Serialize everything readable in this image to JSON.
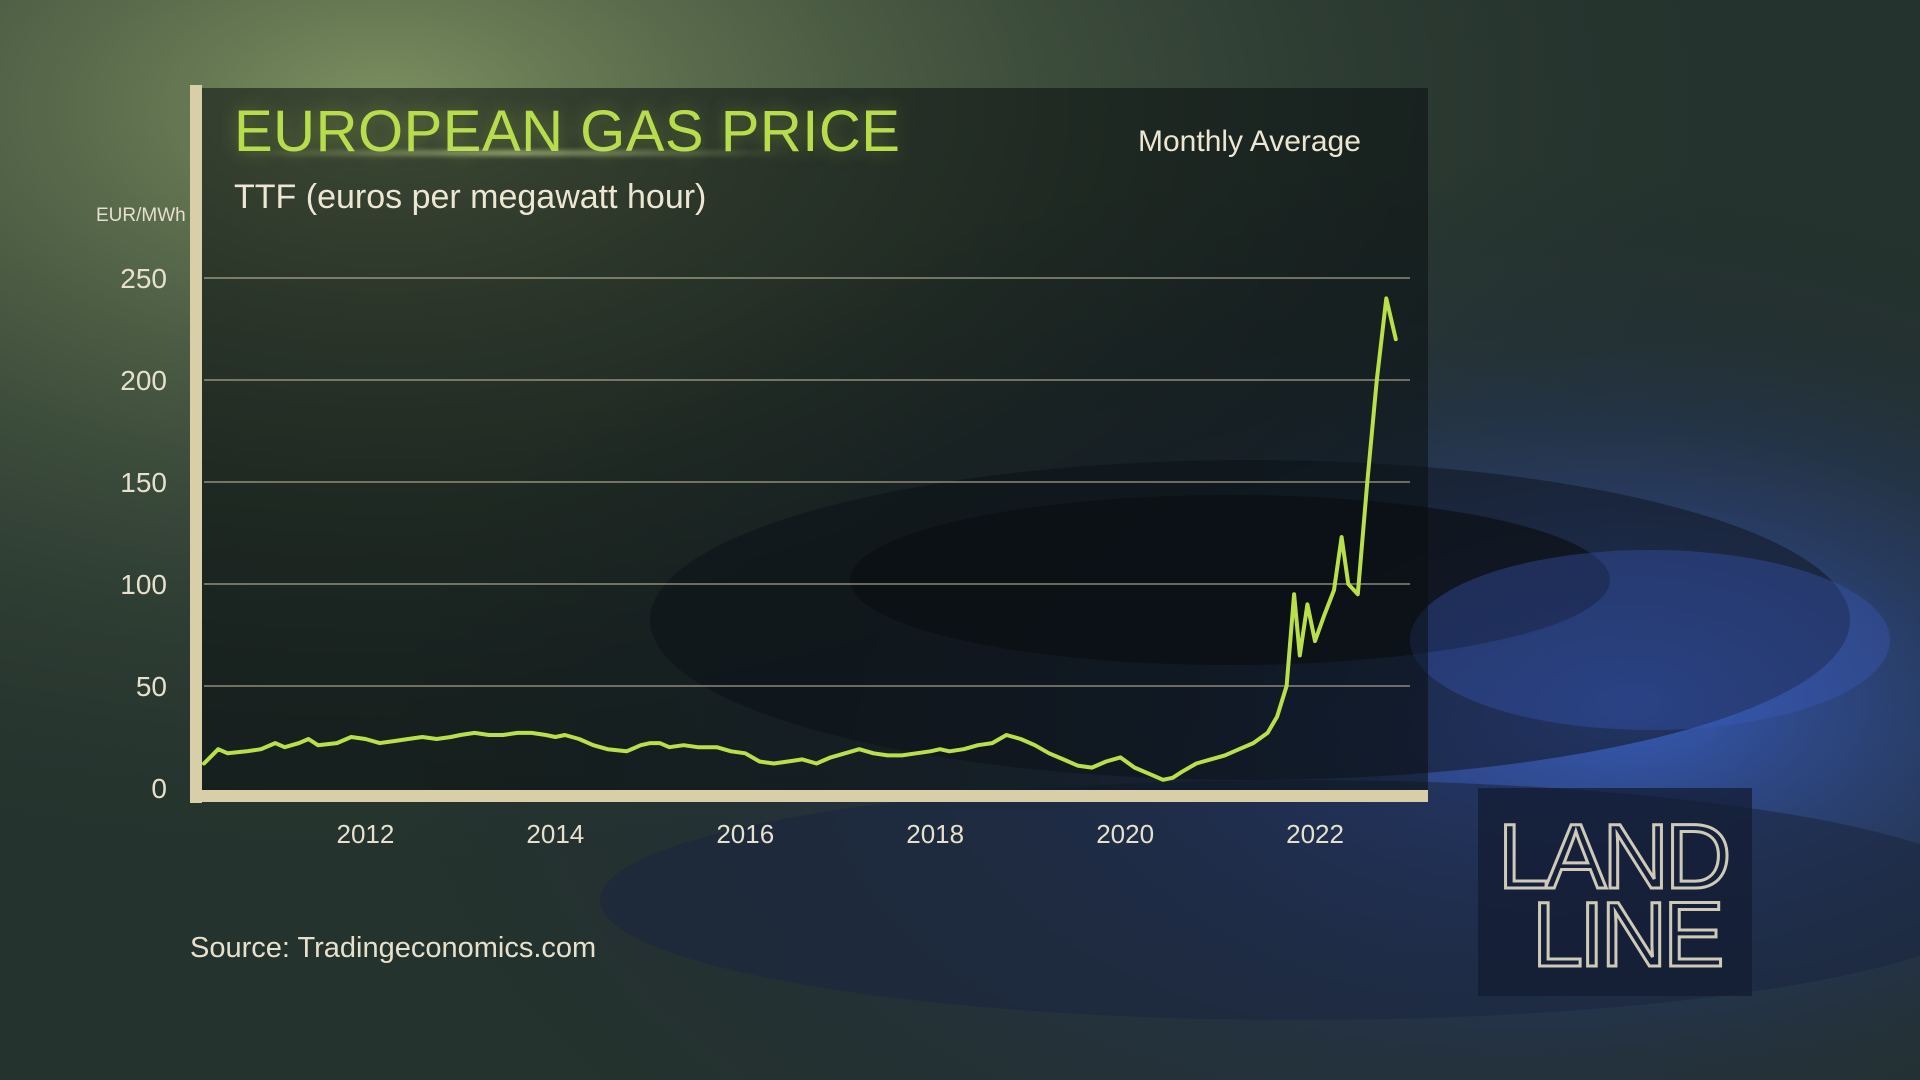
{
  "header": {
    "title": "EUROPEAN GAS PRICE",
    "subtitle": "TTF (euros per megawatt hour)",
    "note": "Monthly Average"
  },
  "footer": {
    "source": "Source: Tradingeconomics.com"
  },
  "logo": {
    "line1": "LAND",
    "line2": "LINE"
  },
  "colors": {
    "title": "#b7dc4c",
    "line": "#b9e04a",
    "axis_rule": "#d8cfa8",
    "text": "#e6e0cc"
  },
  "chart_data": {
    "type": "line",
    "title": "EUROPEAN GAS PRICE",
    "subtitle": "TTF (euros per megawatt hour)",
    "ylabel": "EUR/MWh",
    "xlabel": "",
    "ylim": [
      0,
      250
    ],
    "yticks": [
      0,
      50,
      100,
      150,
      200,
      250
    ],
    "xlim": [
      2010.3,
      2023.0
    ],
    "xticks": [
      2012,
      2014,
      2016,
      2018,
      2020,
      2022
    ],
    "grid": true,
    "series": [
      {
        "values": [
          [
            2010.3,
            12
          ],
          [
            2010.45,
            19
          ],
          [
            2010.55,
            17
          ],
          [
            2010.75,
            18
          ],
          [
            2010.9,
            19
          ],
          [
            2011.05,
            22
          ],
          [
            2011.15,
            20
          ],
          [
            2011.3,
            22
          ],
          [
            2011.4,
            24
          ],
          [
            2011.5,
            21
          ],
          [
            2011.7,
            22
          ],
          [
            2011.85,
            25
          ],
          [
            2012.0,
            24
          ],
          [
            2012.15,
            22
          ],
          [
            2012.3,
            23
          ],
          [
            2012.45,
            24
          ],
          [
            2012.6,
            25
          ],
          [
            2012.75,
            24
          ],
          [
            2012.9,
            25
          ],
          [
            2013.0,
            26
          ],
          [
            2013.15,
            27
          ],
          [
            2013.3,
            26
          ],
          [
            2013.45,
            26
          ],
          [
            2013.6,
            27
          ],
          [
            2013.75,
            27
          ],
          [
            2013.9,
            26
          ],
          [
            2014.0,
            25
          ],
          [
            2014.1,
            26
          ],
          [
            2014.25,
            24
          ],
          [
            2014.4,
            21
          ],
          [
            2014.55,
            19
          ],
          [
            2014.75,
            18
          ],
          [
            2014.9,
            21
          ],
          [
            2015.0,
            22
          ],
          [
            2015.1,
            22
          ],
          [
            2015.2,
            20
          ],
          [
            2015.35,
            21
          ],
          [
            2015.5,
            20
          ],
          [
            2015.7,
            20
          ],
          [
            2015.85,
            18
          ],
          [
            2016.0,
            17
          ],
          [
            2016.15,
            13
          ],
          [
            2016.3,
            12
          ],
          [
            2016.45,
            13
          ],
          [
            2016.6,
            14
          ],
          [
            2016.75,
            12
          ],
          [
            2016.9,
            15
          ],
          [
            2017.05,
            17
          ],
          [
            2017.2,
            19
          ],
          [
            2017.35,
            17
          ],
          [
            2017.5,
            16
          ],
          [
            2017.65,
            16
          ],
          [
            2017.8,
            17
          ],
          [
            2017.95,
            18
          ],
          [
            2018.05,
            19
          ],
          [
            2018.15,
            18
          ],
          [
            2018.3,
            19
          ],
          [
            2018.45,
            21
          ],
          [
            2018.6,
            22
          ],
          [
            2018.75,
            26
          ],
          [
            2018.9,
            24
          ],
          [
            2019.05,
            21
          ],
          [
            2019.2,
            17
          ],
          [
            2019.35,
            14
          ],
          [
            2019.5,
            11
          ],
          [
            2019.65,
            10
          ],
          [
            2019.8,
            13
          ],
          [
            2019.95,
            15
          ],
          [
            2020.1,
            10
          ],
          [
            2020.25,
            7
          ],
          [
            2020.4,
            4
          ],
          [
            2020.5,
            5
          ],
          [
            2020.6,
            8
          ],
          [
            2020.75,
            12
          ],
          [
            2020.9,
            14
          ],
          [
            2021.05,
            16
          ],
          [
            2021.2,
            19
          ],
          [
            2021.35,
            22
          ],
          [
            2021.5,
            27
          ],
          [
            2021.6,
            35
          ],
          [
            2021.7,
            50
          ],
          [
            2021.78,
            95
          ],
          [
            2021.84,
            65
          ],
          [
            2021.92,
            90
          ],
          [
            2022.0,
            72
          ],
          [
            2022.1,
            85
          ],
          [
            2022.2,
            97
          ],
          [
            2022.28,
            123
          ],
          [
            2022.35,
            100
          ],
          [
            2022.45,
            95
          ],
          [
            2022.55,
            150
          ],
          [
            2022.65,
            200
          ],
          [
            2022.75,
            240
          ],
          [
            2022.85,
            220
          ]
        ]
      }
    ]
  }
}
